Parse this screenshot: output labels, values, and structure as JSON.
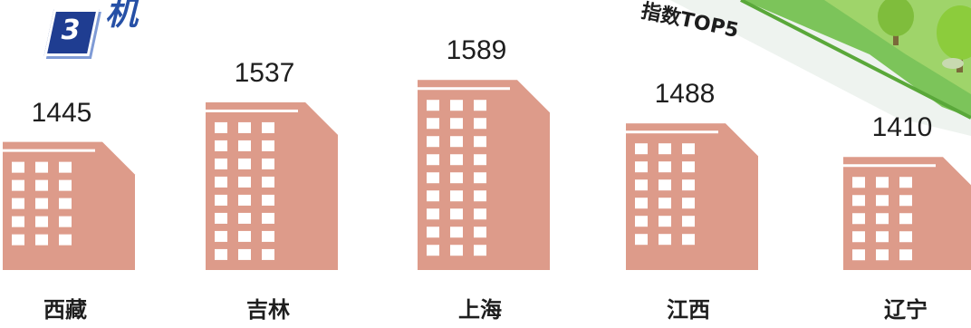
{
  "header": {
    "badge_number": "3",
    "title_fragment_left": "机",
    "title_fragment_right": "指数TOP5"
  },
  "colors": {
    "building": "#dd9b8a",
    "window": "#ffffff",
    "badge": "#1f3d91",
    "hill_green": "#6fbf4b",
    "tree_green": "#8ccc3c"
  },
  "chart_data": {
    "type": "bar",
    "categories": [
      "西藏",
      "吉林",
      "上海",
      "江西",
      "辽宁"
    ],
    "values": [
      1445,
      1537,
      1589,
      1488,
      1410
    ],
    "value_labels": [
      "1445",
      "1537",
      "1589",
      "1488",
      "1410"
    ],
    "title": "",
    "xlabel": "",
    "ylabel": "",
    "ylim": [
      1400,
      1600
    ],
    "grid": false,
    "style": "building-shaped bars"
  }
}
